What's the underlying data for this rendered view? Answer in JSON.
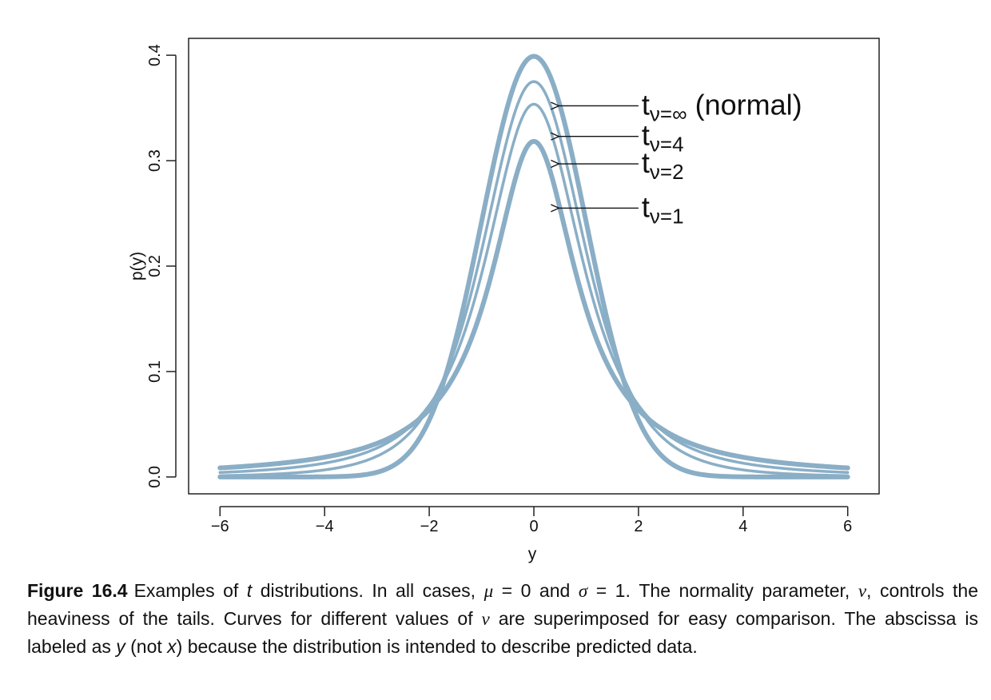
{
  "chart_data": {
    "type": "line",
    "xlabel": "y",
    "ylabel": "p(y)",
    "xlim": [
      -6.6,
      6.6
    ],
    "ylim": [
      -0.016,
      0.416
    ],
    "xticks": [
      -6,
      -4,
      -2,
      0,
      2,
      4,
      6
    ],
    "xtick_labels": [
      "−6",
      "−4",
      "−2",
      "0",
      "2",
      "4",
      "6"
    ],
    "yticks": [
      0.0,
      0.1,
      0.2,
      0.3,
      0.4
    ],
    "ytick_labels": [
      "0.0",
      "0.1",
      "0.2",
      "0.3",
      "0.4"
    ],
    "grid": false,
    "line_color": "#8aaec6",
    "x_range": [
      -6,
      6
    ],
    "series": [
      {
        "nu": "∞",
        "peak": 0.3989,
        "label_main": "t",
        "label_sub": "ν=∞",
        "label_suffix": "(normal)",
        "arrow_y": 0.352,
        "thick": true
      },
      {
        "nu": 4,
        "peak": 0.375,
        "label_main": "t",
        "label_sub": "ν=4",
        "label_suffix": "",
        "arrow_y": 0.323,
        "thick": false
      },
      {
        "nu": 2,
        "peak": 0.3536,
        "label_main": "t",
        "label_sub": "ν=2",
        "label_suffix": "",
        "arrow_y": 0.297,
        "thick": false
      },
      {
        "nu": 1,
        "peak": 0.3183,
        "label_main": "t",
        "label_sub": "ν=1",
        "label_suffix": "",
        "arrow_y": 0.255,
        "thick": true
      }
    ]
  },
  "caption": {
    "figure_label": "Figure 16.4",
    "text_1": "Examples of ",
    "t_symbol": "t",
    "text_2": " distributions. In all cases, ",
    "mu": "μ",
    "eq_1": " = 0 and ",
    "sigma": "σ",
    "eq_2": " = 1. The normality parameter, ",
    "nu_1": "ν",
    "text_3": ", controls the heaviness of the tails. Curves for different values of ",
    "nu_2": "ν",
    "text_4": " are superimposed for easy comparison. The abscissa is labeled as ",
    "y_symbol": "y",
    "text_5": " (not ",
    "x_symbol": "x",
    "text_6": ") because the distribution is intended to describe predicted data."
  }
}
